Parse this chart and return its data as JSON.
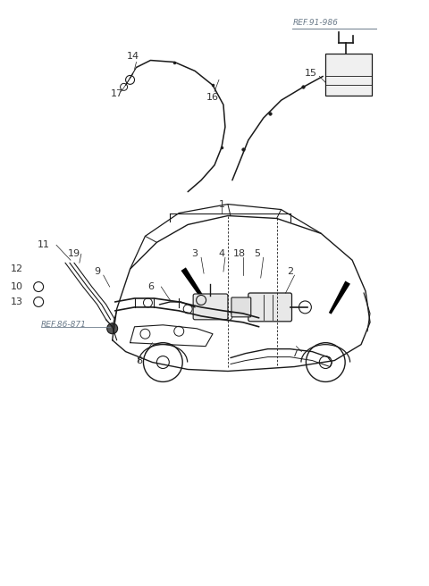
{
  "background_color": "#ffffff",
  "line_color": "#1a1a1a",
  "label_color": "#333333",
  "ref_color": "#6b7b8a",
  "fig_width": 4.8,
  "fig_height": 6.56,
  "dpi": 100
}
